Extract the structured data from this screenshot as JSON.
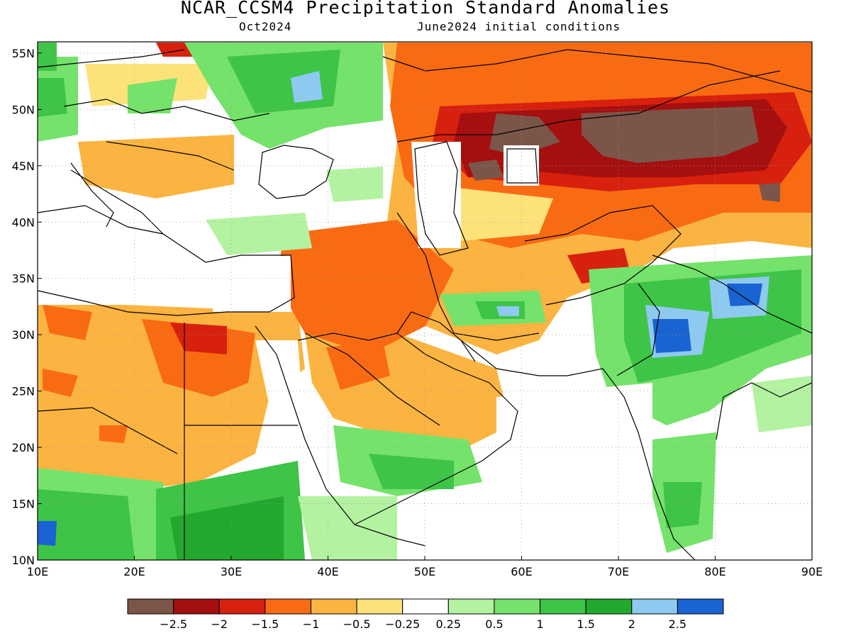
{
  "title": "NCAR_CCSM4 Precipitation Standard Anomalies",
  "valid_month": "Oct2024",
  "init_conditions": "June2024 initial conditions",
  "lat_labels": [
    "55N",
    "50N",
    "45N",
    "40N",
    "35N",
    "30N",
    "25N",
    "20N",
    "15N",
    "10N"
  ],
  "lon_labels": [
    "10E",
    "20E",
    "30E",
    "40E",
    "50E",
    "60E",
    "70E",
    "80E",
    "90E"
  ],
  "colorbar": {
    "tick_labels": [
      "−2.5",
      "−2",
      "−1.5",
      "−1",
      "−0.5",
      "−0.25",
      "0.25",
      "0.5",
      "1",
      "1.5",
      "2",
      "2.5"
    ],
    "colors": [
      "#7b5548",
      "#a50f0f",
      "#d7200e",
      "#f96b12",
      "#fbb441",
      "#fde27a",
      "#ffffff",
      "#b3f2a1",
      "#75e26b",
      "#3ec447",
      "#22a82d",
      "#8ec9f0",
      "#1a63d2"
    ]
  },
  "colors": {
    "dry_extreme": "#7b5548",
    "dry_strong": "#a50f0f",
    "dry": "#f96b12",
    "wet": "#3ec447",
    "wet_extreme": "#1a63d2"
  }
}
